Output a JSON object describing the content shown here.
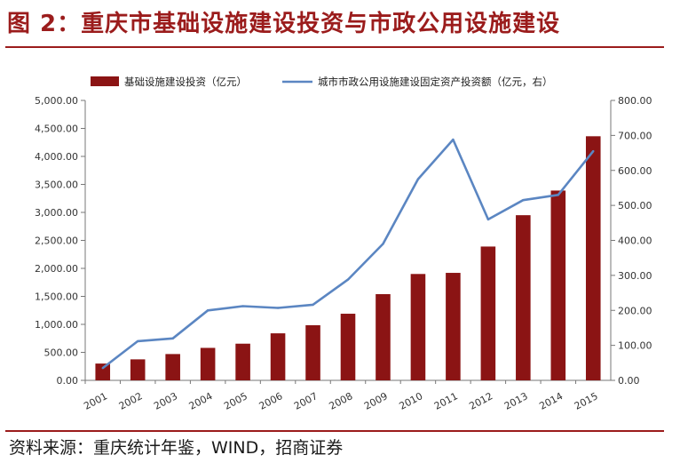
{
  "title": "图 2：重庆市基础设施建设投资与市政公用设施建设",
  "source": "资料来源：重庆统计年鉴，WIND，招商证券",
  "colors": {
    "title": "#9b1c1c",
    "bar": "#8b1414",
    "line": "#5b86c2"
  },
  "chart_data": {
    "type": "bar+line",
    "categories": [
      "2001",
      "2002",
      "2003",
      "2004",
      "2005",
      "2006",
      "2007",
      "2008",
      "2009",
      "2010",
      "2011",
      "2012",
      "2013",
      "2014",
      "2015"
    ],
    "series": [
      {
        "name": "基础设施建设投资（亿元）",
        "type": "bar",
        "axis": "left",
        "values": [
          300,
          375,
          470,
          580,
          655,
          840,
          985,
          1190,
          1540,
          1900,
          1920,
          2390,
          2950,
          3390,
          4360
        ]
      },
      {
        "name": "城市市政公用设施建设固定资产投资额（亿元，右）",
        "type": "line",
        "axis": "right",
        "values": [
          35,
          112,
          120,
          200,
          212,
          207,
          216,
          288,
          390,
          575,
          688,
          460,
          515,
          530,
          655
        ]
      }
    ],
    "y_left": {
      "min": 0,
      "max": 5000,
      "step": 500,
      "ticks": [
        "0.00",
        "500.00",
        "1,000.00",
        "1,500.00",
        "2,000.00",
        "2,500.00",
        "3,000.00",
        "3,500.00",
        "4,000.00",
        "4,500.00",
        "5,000.00"
      ]
    },
    "y_right": {
      "min": 0,
      "max": 800,
      "step": 100,
      "ticks": [
        "0.00",
        "100.00",
        "200.00",
        "300.00",
        "400.00",
        "500.00",
        "600.00",
        "700.00",
        "800.00"
      ]
    },
    "legend_position": "top",
    "grid": false
  }
}
